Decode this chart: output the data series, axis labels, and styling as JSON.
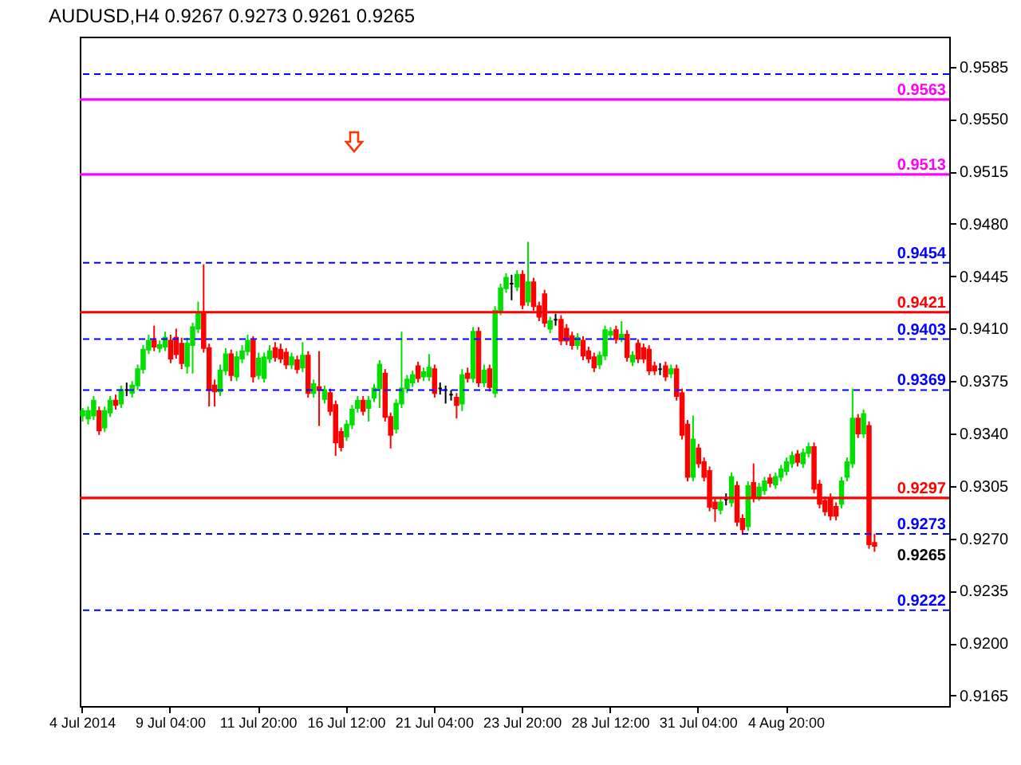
{
  "chart_data": {
    "type": "candlestick",
    "title": "AUDUSD,H4  0.9267 0.9273 0.9261 0.9265",
    "categories": [
      "4 Jul 2014",
      null,
      null,
      null,
      null,
      null,
      null,
      null,
      null,
      null,
      null,
      null,
      null,
      null,
      null,
      null,
      "9 Jul 04:00",
      null,
      null,
      null,
      null,
      null,
      null,
      null,
      null,
      null,
      null,
      null,
      null,
      null,
      null,
      null,
      "11 Jul 20:00",
      null,
      null,
      null,
      null,
      null,
      null,
      null,
      null,
      null,
      null,
      null,
      null,
      null,
      null,
      null,
      "16 Jul 12:00",
      null,
      null,
      null,
      null,
      null,
      null,
      null,
      null,
      null,
      null,
      null,
      null,
      null,
      null,
      null,
      "21 Jul 04:00",
      null,
      null,
      null,
      null,
      null,
      null,
      null,
      null,
      null,
      null,
      null,
      null,
      null,
      null,
      null,
      "23 Jul 20:00",
      null,
      null,
      null,
      null,
      null,
      null,
      null,
      null,
      null,
      null,
      null,
      null,
      null,
      null,
      null,
      "28 Jul 12:00",
      null,
      null,
      null,
      null,
      null,
      null,
      null,
      null,
      null,
      null,
      null,
      null,
      null,
      null,
      null,
      "31 Jul 04:00",
      null,
      null,
      null,
      null,
      null,
      null,
      null,
      null,
      null,
      null,
      null,
      null,
      null,
      null,
      null,
      "4 Aug 20:00",
      null,
      null,
      null,
      null,
      null,
      null,
      null,
      null,
      null,
      null,
      null,
      null,
      null,
      null,
      null,
      null
    ],
    "ohlc": [
      [
        0.9352,
        0.9357,
        0.9348,
        0.9355
      ],
      [
        0.935,
        0.9358,
        0.9346,
        0.9355
      ],
      [
        0.9352,
        0.9365,
        0.9349,
        0.9362
      ],
      [
        0.9355,
        0.9358,
        0.9339,
        0.9342
      ],
      [
        0.9344,
        0.9358,
        0.9341,
        0.9355
      ],
      [
        0.9354,
        0.9365,
        0.9351,
        0.9362
      ],
      [
        0.9362,
        0.9366,
        0.9356,
        0.9359
      ],
      [
        0.936,
        0.9372,
        0.9357,
        0.9369
      ],
      [
        0.9369,
        0.9374,
        0.9365,
        0.9369
      ],
      [
        0.9367,
        0.9375,
        0.9364,
        0.9372
      ],
      [
        0.9372,
        0.9386,
        0.9369,
        0.9383
      ],
      [
        0.9383,
        0.9399,
        0.938,
        0.9396
      ],
      [
        0.9396,
        0.9406,
        0.9393,
        0.9402
      ],
      [
        0.9402,
        0.9412,
        0.9395,
        0.9398
      ],
      [
        0.9397,
        0.9402,
        0.9394,
        0.9399
      ],
      [
        0.9398,
        0.9408,
        0.9395,
        0.9404
      ],
      [
        0.9402,
        0.9406,
        0.9387,
        0.939
      ],
      [
        0.9404,
        0.941,
        0.939,
        0.9393
      ],
      [
        0.94,
        0.9404,
        0.9383,
        0.9387
      ],
      [
        0.9385,
        0.9404,
        0.938,
        0.94
      ],
      [
        0.9399,
        0.9414,
        0.938,
        0.9411
      ],
      [
        0.941,
        0.9428,
        0.9407,
        0.942
      ],
      [
        0.942,
        0.9453,
        0.9394,
        0.9397
      ],
      [
        0.9397,
        0.94,
        0.9358,
        0.9369
      ],
      [
        0.9372,
        0.9376,
        0.9358,
        0.9368
      ],
      [
        0.9368,
        0.9386,
        0.9365,
        0.9382
      ],
      [
        0.9382,
        0.9397,
        0.9379,
        0.9393
      ],
      [
        0.9393,
        0.9396,
        0.9375,
        0.9379
      ],
      [
        0.9378,
        0.9395,
        0.9375,
        0.9391
      ],
      [
        0.939,
        0.9399,
        0.9387,
        0.9395
      ],
      [
        0.9395,
        0.9406,
        0.9392,
        0.9402
      ],
      [
        0.9402,
        0.9405,
        0.9374,
        0.9378
      ],
      [
        0.9379,
        0.9394,
        0.9376,
        0.939
      ],
      [
        0.9377,
        0.9394,
        0.9374,
        0.9391
      ],
      [
        0.939,
        0.9399,
        0.9387,
        0.9395
      ],
      [
        0.9397,
        0.9401,
        0.9388,
        0.9391
      ],
      [
        0.9396,
        0.94,
        0.9387,
        0.939
      ],
      [
        0.9394,
        0.9397,
        0.9383,
        0.9386
      ],
      [
        0.9386,
        0.9394,
        0.9383,
        0.9391
      ],
      [
        0.9389,
        0.9392,
        0.938,
        0.9383
      ],
      [
        0.9384,
        0.9401,
        0.9381,
        0.9392
      ],
      [
        0.9392,
        0.9395,
        0.9364,
        0.9367
      ],
      [
        0.9367,
        0.9376,
        0.9364,
        0.9373
      ],
      [
        0.9371,
        0.9395,
        0.9345,
        0.9369
      ],
      [
        0.9363,
        0.9372,
        0.936,
        0.9369
      ],
      [
        0.9367,
        0.937,
        0.9352,
        0.9355
      ],
      [
        0.9359,
        0.9362,
        0.9325,
        0.9334
      ],
      [
        0.9341,
        0.9344,
        0.9328,
        0.9331
      ],
      [
        0.9338,
        0.9349,
        0.9335,
        0.9346
      ],
      [
        0.9346,
        0.9359,
        0.9343,
        0.9356
      ],
      [
        0.9357,
        0.9365,
        0.9354,
        0.9362
      ],
      [
        0.9362,
        0.9365,
        0.9352,
        0.9355
      ],
      [
        0.9357,
        0.9365,
        0.9348,
        0.9362
      ],
      [
        0.9364,
        0.9373,
        0.9361,
        0.937
      ],
      [
        0.937,
        0.9389,
        0.9357,
        0.9386
      ],
      [
        0.938,
        0.9383,
        0.9348,
        0.9351
      ],
      [
        0.9351,
        0.9354,
        0.933,
        0.9339
      ],
      [
        0.9343,
        0.9363,
        0.934,
        0.936
      ],
      [
        0.936,
        0.9408,
        0.9357,
        0.937
      ],
      [
        0.937,
        0.9379,
        0.9367,
        0.9376
      ],
      [
        0.9374,
        0.9382,
        0.9371,
        0.9379
      ],
      [
        0.9385,
        0.9388,
        0.9374,
        0.9377
      ],
      [
        0.9378,
        0.9384,
        0.9375,
        0.9381
      ],
      [
        0.9378,
        0.9393,
        0.9375,
        0.9384
      ],
      [
        0.9383,
        0.9386,
        0.9364,
        0.9367
      ],
      [
        0.937,
        0.9374,
        0.9366,
        0.937
      ],
      [
        0.9369,
        0.9372,
        0.936,
        0.9369
      ],
      [
        0.9366,
        0.9369,
        0.9362,
        0.9366
      ],
      [
        0.9364,
        0.9367,
        0.935,
        0.9359
      ],
      [
        0.936,
        0.9383,
        0.9355,
        0.9379
      ],
      [
        0.938,
        0.9384,
        0.9374,
        0.9377
      ],
      [
        0.9377,
        0.9411,
        0.9374,
        0.9408
      ],
      [
        0.9408,
        0.9411,
        0.9371,
        0.9374
      ],
      [
        0.9374,
        0.9386,
        0.9371,
        0.9382
      ],
      [
        0.9383,
        0.9386,
        0.9368,
        0.9371
      ],
      [
        0.9367,
        0.9425,
        0.9364,
        0.9422
      ],
      [
        0.9422,
        0.944,
        0.9419,
        0.9437
      ],
      [
        0.9437,
        0.9447,
        0.9434,
        0.9444
      ],
      [
        0.944,
        0.9446,
        0.9429,
        0.944
      ],
      [
        0.9438,
        0.9449,
        0.9435,
        0.9446
      ],
      [
        0.9446,
        0.9449,
        0.9423,
        0.9426
      ],
      [
        0.9428,
        0.9468,
        0.9425,
        0.9441
      ],
      [
        0.9441,
        0.9444,
        0.9422,
        0.9425
      ],
      [
        0.9425,
        0.9428,
        0.9415,
        0.9418
      ],
      [
        0.9433,
        0.9436,
        0.9411,
        0.9414
      ],
      [
        0.941,
        0.9418,
        0.9407,
        0.9415
      ],
      [
        0.9416,
        0.942,
        0.9412,
        0.9416
      ],
      [
        0.9416,
        0.9419,
        0.9399,
        0.9402
      ],
      [
        0.941,
        0.9413,
        0.9399,
        0.9402
      ],
      [
        0.9405,
        0.9408,
        0.9396,
        0.9399
      ],
      [
        0.9399,
        0.9407,
        0.9396,
        0.9404
      ],
      [
        0.9402,
        0.9405,
        0.9389,
        0.9392
      ],
      [
        0.9395,
        0.9398,
        0.9387,
        0.939
      ],
      [
        0.9391,
        0.9394,
        0.9381,
        0.9384
      ],
      [
        0.9386,
        0.9395,
        0.9383,
        0.9392
      ],
      [
        0.9392,
        0.9412,
        0.9389,
        0.9409
      ],
      [
        0.9406,
        0.9411,
        0.9403,
        0.9408
      ],
      [
        0.9409,
        0.9412,
        0.94,
        0.9403
      ],
      [
        0.9404,
        0.9415,
        0.9401,
        0.9406
      ],
      [
        0.9406,
        0.9409,
        0.9388,
        0.9391
      ],
      [
        0.9388,
        0.9395,
        0.9385,
        0.9392
      ],
      [
        0.94,
        0.9403,
        0.9387,
        0.939
      ],
      [
        0.9397,
        0.94,
        0.9387,
        0.939
      ],
      [
        0.9396,
        0.9399,
        0.9379,
        0.9382
      ],
      [
        0.9385,
        0.9388,
        0.9379,
        0.9382
      ],
      [
        0.9383,
        0.9387,
        0.9379,
        0.9383
      ],
      [
        0.9385,
        0.9388,
        0.9375,
        0.9378
      ],
      [
        0.938,
        0.9386,
        0.9377,
        0.9383
      ],
      [
        0.9383,
        0.9386,
        0.9362,
        0.9365
      ],
      [
        0.9367,
        0.937,
        0.9336,
        0.9339
      ],
      [
        0.9346,
        0.9349,
        0.9308,
        0.9311
      ],
      [
        0.9311,
        0.9352,
        0.9308,
        0.9336
      ],
      [
        0.933,
        0.9333,
        0.9317,
        0.932
      ],
      [
        0.9321,
        0.9324,
        0.9308,
        0.9311
      ],
      [
        0.9315,
        0.9318,
        0.9288,
        0.9291
      ],
      [
        0.9294,
        0.9297,
        0.9281,
        0.929
      ],
      [
        0.9289,
        0.9297,
        0.9286,
        0.9294
      ],
      [
        0.9296,
        0.93,
        0.9292,
        0.9296
      ],
      [
        0.9294,
        0.9314,
        0.9291,
        0.9311
      ],
      [
        0.9305,
        0.9308,
        0.9278,
        0.9281
      ],
      [
        0.9283,
        0.9286,
        0.9273,
        0.9276
      ],
      [
        0.9278,
        0.9308,
        0.9275,
        0.9305
      ],
      [
        0.9307,
        0.932,
        0.9294,
        0.9297
      ],
      [
        0.9298,
        0.9307,
        0.9295,
        0.9304
      ],
      [
        0.9302,
        0.9311,
        0.9299,
        0.9308
      ],
      [
        0.931,
        0.9313,
        0.9304,
        0.9307
      ],
      [
        0.9306,
        0.9314,
        0.9303,
        0.9311
      ],
      [
        0.9311,
        0.9319,
        0.9308,
        0.9316
      ],
      [
        0.9315,
        0.9324,
        0.9312,
        0.9321
      ],
      [
        0.932,
        0.9328,
        0.9317,
        0.9325
      ],
      [
        0.9326,
        0.9329,
        0.9318,
        0.9321
      ],
      [
        0.932,
        0.933,
        0.9317,
        0.9327
      ],
      [
        0.9327,
        0.9334,
        0.9324,
        0.9331
      ],
      [
        0.9331,
        0.9334,
        0.93,
        0.9303
      ],
      [
        0.9306,
        0.9309,
        0.929,
        0.9293
      ],
      [
        0.9295,
        0.9298,
        0.9285,
        0.9288
      ],
      [
        0.9297,
        0.93,
        0.9282,
        0.9285
      ],
      [
        0.9291,
        0.9294,
        0.9282,
        0.9285
      ],
      [
        0.9293,
        0.9311,
        0.929,
        0.9308
      ],
      [
        0.9311,
        0.9324,
        0.9308,
        0.9321
      ],
      [
        0.932,
        0.937,
        0.9317,
        0.935
      ],
      [
        0.935,
        0.9353,
        0.9337,
        0.934
      ],
      [
        0.934,
        0.9356,
        0.9337,
        0.9353
      ],
      [
        0.9345,
        0.9348,
        0.9263,
        0.9266
      ],
      [
        0.9267,
        0.9273,
        0.9261,
        0.9265
      ]
    ],
    "colors": [
      "#00e000",
      "#00e000",
      "#00e000",
      "#ff0000",
      "#00e000",
      "#00e000",
      "#ff0000",
      "#00e000",
      "#000000",
      "#00e000",
      "#00e000",
      "#00e000",
      "#00e000",
      "#ff0000",
      "#00e000",
      "#00e000",
      "#ff0000",
      "#ff0000",
      "#ff0000",
      "#00e000",
      "#00e000",
      "#00e000",
      "#ff0000",
      "#ff0000",
      "#ff0000",
      "#00e000",
      "#00e000",
      "#ff0000",
      "#00e000",
      "#00e000",
      "#00e000",
      "#ff0000",
      "#00e000",
      "#00e000",
      "#00e000",
      "#ff0000",
      "#ff0000",
      "#ff0000",
      "#00e000",
      "#ff0000",
      "#00e000",
      "#ff0000",
      "#00e000",
      "#ff0000",
      "#00e000",
      "#ff0000",
      "#ff0000",
      "#ff0000",
      "#00e000",
      "#00e000",
      "#00e000",
      "#ff0000",
      "#00e000",
      "#00e000",
      "#00e000",
      "#ff0000",
      "#ff0000",
      "#00e000",
      "#00e000",
      "#00e000",
      "#00e000",
      "#ff0000",
      "#00e000",
      "#00e000",
      "#ff0000",
      "#000000",
      "#000000",
      "#000000",
      "#ff0000",
      "#00e000",
      "#ff0000",
      "#00e000",
      "#ff0000",
      "#00e000",
      "#ff0000",
      "#00e000",
      "#00e000",
      "#00e000",
      "#000000",
      "#00e000",
      "#ff0000",
      "#00e000",
      "#ff0000",
      "#ff0000",
      "#ff0000",
      "#00e000",
      "#000000",
      "#ff0000",
      "#ff0000",
      "#ff0000",
      "#00e000",
      "#ff0000",
      "#ff0000",
      "#ff0000",
      "#00e000",
      "#00e000",
      "#00e000",
      "#ff0000",
      "#00e000",
      "#ff0000",
      "#00e000",
      "#ff0000",
      "#ff0000",
      "#ff0000",
      "#ff0000",
      "#000000",
      "#ff0000",
      "#00e000",
      "#ff0000",
      "#ff0000",
      "#ff0000",
      "#00e000",
      "#ff0000",
      "#ff0000",
      "#ff0000",
      "#ff0000",
      "#00e000",
      "#000000",
      "#00e000",
      "#ff0000",
      "#ff0000",
      "#00e000",
      "#ff0000",
      "#00e000",
      "#00e000",
      "#ff0000",
      "#00e000",
      "#00e000",
      "#00e000",
      "#00e000",
      "#ff0000",
      "#00e000",
      "#00e000",
      "#ff0000",
      "#ff0000",
      "#ff0000",
      "#ff0000",
      "#ff0000",
      "#00e000",
      "#00e000",
      "#00e000",
      "#ff0000",
      "#00e000",
      "#ff0000",
      "#ff0000"
    ],
    "ylim": [
      0.9158,
      0.9605
    ],
    "yticks": [
      0.9165,
      {
        "value": 0.92,
        "label": "0.9200"
      },
      0.9235,
      {
        "value": 0.927,
        "label": "0.9270"
      },
      0.9305,
      {
        "value": 0.934,
        "label": "0.9340"
      },
      0.9375,
      {
        "value": 0.941,
        "label": "0.9410"
      },
      0.9445,
      {
        "value": 0.948,
        "label": "0.9480"
      },
      0.9515,
      {
        "value": 0.955,
        "label": "0.9550"
      },
      0.9585
    ],
    "ref_lines": [
      {
        "axis": "y",
        "value": 0.958,
        "label": null,
        "color": "#0000ff",
        "line_style": "dashed"
      },
      {
        "axis": "y",
        "value": 0.9563,
        "label": "0.9563",
        "color": "#ff00ff",
        "line_style": "solid"
      },
      {
        "axis": "y",
        "value": 0.9513,
        "label": "0.9513",
        "color": "#ff00ff",
        "line_style": "solid"
      },
      {
        "axis": "y",
        "value": 0.9454,
        "label": "0.9454",
        "color": "#0000ff",
        "line_style": "dashed"
      },
      {
        "axis": "y",
        "value": 0.9421,
        "label": "0.9421",
        "color": "#ff0000",
        "line_style": "solid"
      },
      {
        "axis": "y",
        "value": 0.9403,
        "label": "0.9403",
        "color": "#0000ff",
        "line_style": "dashed"
      },
      {
        "axis": "y",
        "value": 0.9369,
        "label": "0.9369",
        "color": "#0000ff",
        "line_style": "dashed"
      },
      {
        "axis": "y",
        "value": 0.9297,
        "label": "0.9297",
        "color": "#ff0000",
        "line_style": "solid"
      },
      {
        "axis": "y",
        "value": 0.9273,
        "label": "0.9273",
        "color": "#0000ff",
        "line_style": "dashed"
      },
      {
        "axis": "y",
        "value": 0.9222,
        "label": "0.9222",
        "color": "#0000ff",
        "line_style": "dashed"
      }
    ],
    "annotations": [
      "0.9265"
    ]
  }
}
